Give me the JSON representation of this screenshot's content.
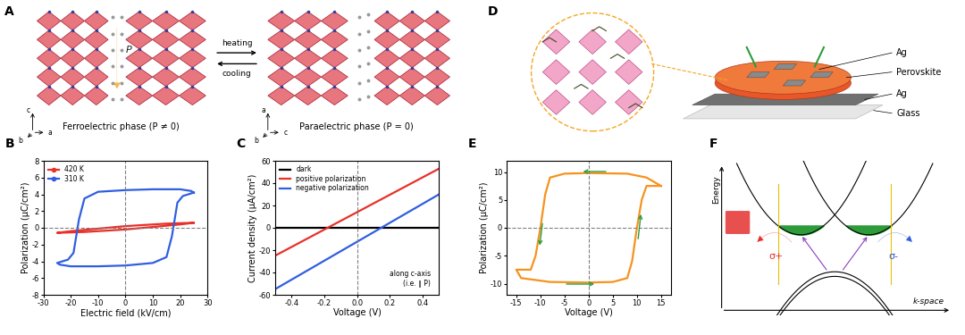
{
  "chart_data": [
    {
      "panel": "B",
      "type": "line",
      "xlabel": "Electric field (kV/cm)",
      "ylabel": "Polarization (μC/cm²)",
      "xlim": [
        -30,
        30
      ],
      "xticks": [
        -30,
        -20,
        -10,
        0,
        10,
        20,
        30
      ],
      "ylim": [
        -8,
        8
      ],
      "yticks": [
        -8,
        -6,
        -4,
        -2,
        0,
        2,
        4,
        6,
        8
      ],
      "legend": "upper left",
      "vlines": [
        0
      ],
      "hlines": [
        0
      ],
      "series": [
        {
          "name": "420 K",
          "color": "#e8312a",
          "marker": "o",
          "x": [
            25,
            15,
            5,
            0,
            -10,
            -20,
            -25,
            -15,
            -5,
            0,
            10,
            20,
            25
          ],
          "values": [
            0.6,
            0.5,
            0.3,
            0.2,
            -0.1,
            -0.4,
            -0.6,
            -0.5,
            -0.3,
            -0.2,
            0.1,
            0.4,
            0.6
          ]
        },
        {
          "name": "310 K",
          "color": "#2f5fe0",
          "marker": "o",
          "x": [
            25,
            24,
            20,
            10,
            0,
            -10,
            -15,
            -17,
            -18,
            -19,
            -21,
            -25,
            -24,
            -20,
            -10,
            0,
            10,
            15,
            17,
            18,
            19,
            21,
            25
          ],
          "values": [
            4.2,
            4.4,
            4.6,
            4.6,
            4.5,
            4.3,
            3.5,
            1.0,
            -1.0,
            -3.0,
            -3.8,
            -4.2,
            -4.4,
            -4.6,
            -4.6,
            -4.5,
            -4.2,
            -3.5,
            -1.0,
            1.0,
            3.0,
            3.8,
            4.2
          ]
        }
      ]
    },
    {
      "panel": "C",
      "type": "line",
      "xlabel": "Voltage (V)",
      "ylabel": "Current density (μA/cm²)",
      "xlim": [
        -0.5,
        0.5
      ],
      "xticks": [
        -0.4,
        -0.2,
        0.0,
        0.2,
        0.4
      ],
      "ylim": [
        -60,
        60
      ],
      "yticks": [
        -60,
        -40,
        -20,
        0,
        20,
        40,
        60
      ],
      "legend": "upper left",
      "vlines": [
        0
      ],
      "annotation": "along c-axis\n(i.e. ∥ P)",
      "series": [
        {
          "name": "dark",
          "color": "#000000",
          "x": [
            -0.5,
            0.5
          ],
          "values": [
            0,
            0
          ]
        },
        {
          "name": "positive polarization",
          "color": "#e8312a",
          "x": [
            -0.5,
            0.5
          ],
          "values": [
            -25,
            53
          ]
        },
        {
          "name": "negative polarization",
          "color": "#2f5fe0",
          "x": [
            -0.5,
            0.5
          ],
          "values": [
            -55,
            30
          ]
        }
      ]
    },
    {
      "panel": "E",
      "type": "line",
      "xlabel": "Voltage (V)",
      "ylabel": "Polarization (μC/cm²)",
      "xlim": [
        -17,
        17
      ],
      "xticks": [
        -15,
        -10,
        -5,
        0,
        5,
        10,
        15
      ],
      "ylim": [
        -12,
        12
      ],
      "yticks": [
        -10,
        -5,
        0,
        5,
        10
      ],
      "vlines": [
        0
      ],
      "hlines": [
        0
      ],
      "series": [
        {
          "color": "#f5931e",
          "x": [
            15,
            12,
            8,
            0,
            -5,
            -8,
            -9,
            -10,
            -11,
            -12,
            -15,
            -14,
            -8,
            0,
            5,
            8,
            9,
            10,
            11,
            12,
            15
          ],
          "values": [
            7.5,
            9,
            9.7,
            9.8,
            9.7,
            9,
            6,
            0,
            -5,
            -7.5,
            -7.5,
            -9,
            -9.7,
            -9.8,
            -9.7,
            -9,
            -6,
            0,
            5,
            7.5,
            7.5
          ]
        }
      ]
    }
  ],
  "diagrams": {
    "A": {
      "panel": "A",
      "arrow_top": "heating",
      "arrow_bottom": "cooling",
      "left_caption": "Ferroelectric phase (P ≠ 0)",
      "right_caption": "Paraelectric phase (P = 0)",
      "polarization": "P",
      "axes_left": [
        "c",
        "b",
        "a"
      ],
      "axes_right": [
        "a",
        "b",
        "c"
      ]
    },
    "D": {
      "panel": "D",
      "layers": [
        "Ag",
        "Perovskite",
        "Ag",
        "Glass"
      ]
    },
    "F": {
      "panel": "F",
      "left_light": "σ+",
      "right_light": "σ-",
      "y_axis": "Energy",
      "x_axis": "k-space"
    }
  }
}
